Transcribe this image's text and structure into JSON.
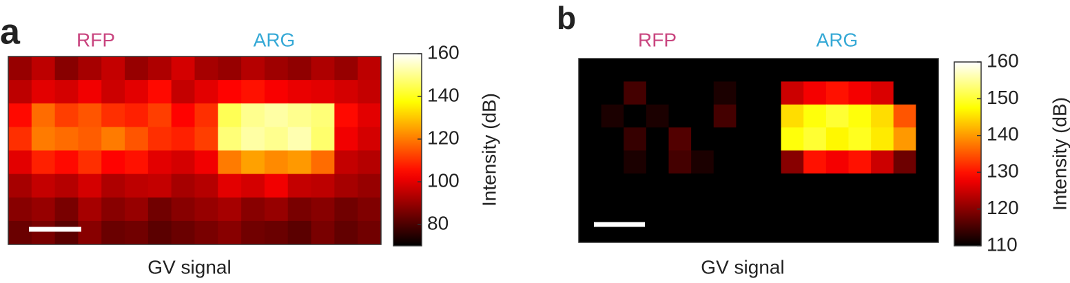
{
  "chart_data": [
    {
      "type": "heatmap",
      "panel": "a",
      "xlabel": "GV signal",
      "colormap": "hot",
      "annotations": [
        {
          "text": "RFP",
          "color": "#c9457f"
        },
        {
          "text": "ARG",
          "color": "#36a9d6"
        }
      ],
      "colorbar_label": "Intensity (dB)",
      "clim": [
        70,
        160
      ],
      "cticks": [
        80,
        100,
        120,
        140,
        160
      ],
      "z": [
        [
          90,
          95,
          88,
          92,
          96,
          90,
          93,
          98,
          92,
          90,
          94,
          91,
          89,
          93,
          90,
          95
        ],
        [
          95,
          100,
          98,
          102,
          97,
          100,
          105,
          96,
          100,
          104,
          106,
          103,
          101,
          100,
          98,
          96
        ],
        [
          105,
          118,
          112,
          115,
          110,
          108,
          112,
          104,
          110,
          145,
          150,
          152,
          150,
          148,
          105,
          100
        ],
        [
          110,
          120,
          118,
          116,
          120,
          115,
          110,
          108,
          112,
          148,
          152,
          150,
          153,
          147,
          102,
          98
        ],
        [
          100,
          108,
          105,
          110,
          104,
          106,
          100,
          98,
          102,
          120,
          125,
          122,
          124,
          118,
          96,
          94
        ],
        [
          92,
          96,
          94,
          98,
          93,
          95,
          96,
          92,
          94,
          100,
          98,
          102,
          96,
          95,
          92,
          90
        ],
        [
          88,
          90,
          86,
          92,
          88,
          90,
          85,
          88,
          90,
          92,
          88,
          90,
          86,
          88,
          85,
          87
        ],
        [
          84,
          86,
          82,
          88,
          84,
          85,
          82,
          84,
          86,
          88,
          85,
          84,
          82,
          86,
          83,
          85
        ]
      ]
    },
    {
      "type": "heatmap",
      "panel": "b",
      "xlabel": "GV signal",
      "colormap": "hot",
      "annotations": [
        {
          "text": "RFP",
          "color": "#c9457f"
        },
        {
          "text": "ARG",
          "color": "#36a9d6"
        }
      ],
      "colorbar_label": "Intensity (dB)",
      "clim": [
        110,
        160
      ],
      "cticks": [
        110,
        120,
        130,
        140,
        150,
        160
      ],
      "z": [
        [
          110,
          110,
          110,
          110,
          110,
          110,
          110,
          110,
          110,
          110,
          110,
          110,
          110,
          110,
          110,
          110
        ],
        [
          110,
          110,
          115,
          110,
          110,
          110,
          112,
          110,
          110,
          125,
          128,
          130,
          128,
          126,
          110,
          110
        ],
        [
          110,
          112,
          110,
          112,
          110,
          110,
          115,
          110,
          110,
          145,
          148,
          150,
          148,
          145,
          135,
          110
        ],
        [
          110,
          110,
          114,
          110,
          116,
          110,
          110,
          110,
          110,
          148,
          150,
          147,
          149,
          146,
          140,
          110
        ],
        [
          110,
          110,
          112,
          110,
          115,
          112,
          110,
          110,
          110,
          120,
          130,
          128,
          130,
          125,
          118,
          110
        ],
        [
          110,
          110,
          110,
          110,
          110,
          110,
          110,
          110,
          110,
          110,
          110,
          110,
          110,
          110,
          110,
          110
        ],
        [
          110,
          110,
          110,
          110,
          110,
          110,
          110,
          110,
          110,
          110,
          110,
          110,
          110,
          110,
          110,
          110
        ],
        [
          110,
          110,
          110,
          110,
          110,
          110,
          110,
          110,
          110,
          110,
          110,
          110,
          110,
          110,
          110,
          110
        ]
      ]
    }
  ]
}
